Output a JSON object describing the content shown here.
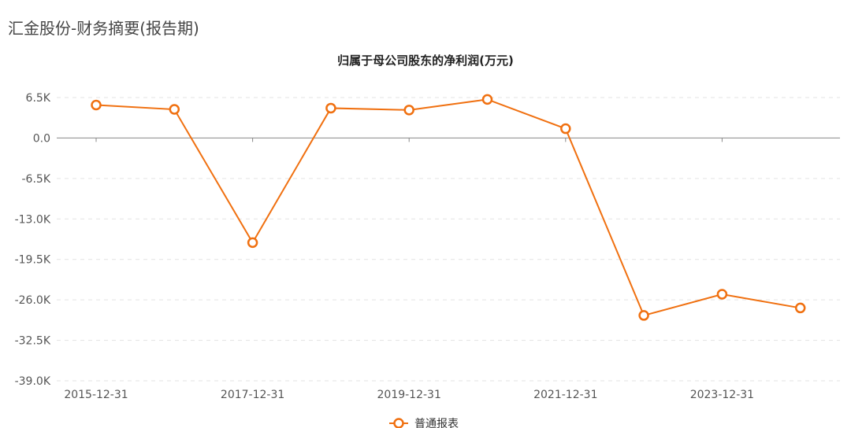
{
  "page_title": "汇金股份-财务摘要(报告期)",
  "chart_data": {
    "type": "line",
    "title": "归属于母公司股东的净利润(万元)",
    "xlabel": "",
    "ylabel": "",
    "x": [
      "2015-12-31",
      "2016-12-31",
      "2017-12-31",
      "2018-12-31",
      "2019-12-31",
      "2020-12-31",
      "2021-12-31",
      "2022-12-31",
      "2023-12-31",
      "2024-12-31"
    ],
    "x_tick_labels": [
      "2015-12-31",
      "2017-12-31",
      "2019-12-31",
      "2021-12-31",
      "2023-12-31"
    ],
    "y_tick_labels": [
      "6.5K",
      "0.0",
      "-6.5K",
      "-13.0K",
      "-19.5K",
      "-26.0K",
      "-32.5K",
      "-39.0K"
    ],
    "y_ticks": [
      6500,
      0,
      -6500,
      -13000,
      -19500,
      -26000,
      -32500,
      -39000
    ],
    "ylim": [
      -39000,
      6500
    ],
    "grid": true,
    "legend_position": "bottom-center",
    "series": [
      {
        "name": "普通报表",
        "color": "#f07010",
        "values": [
          5300,
          4600,
          -16800,
          4800,
          4500,
          6200,
          1500,
          -28500,
          -25100,
          -27300
        ]
      }
    ]
  }
}
